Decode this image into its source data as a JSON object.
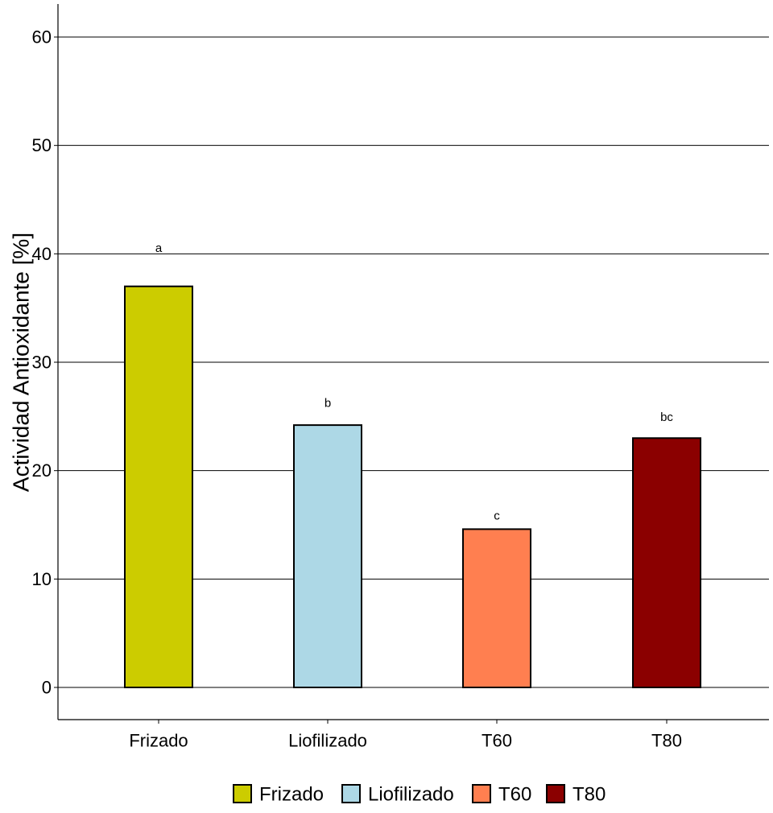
{
  "chart_data": {
    "type": "bar",
    "title": "",
    "xlabel": "",
    "ylabel": "Actividad Antioxidante [%]",
    "ylim": [
      -3,
      63
    ],
    "yticks": [
      0,
      10,
      20,
      30,
      40,
      50,
      60
    ],
    "grid": "horizontal",
    "legend_position": "bottom",
    "categories": [
      "Frizado",
      "Liofilizado",
      "T60",
      "T80"
    ],
    "values": [
      37.0,
      24.2,
      14.6,
      23.0
    ],
    "significance_labels": [
      "a",
      "b",
      "c",
      "bc"
    ],
    "significance_label_y": [
      40.5,
      26.2,
      15.8,
      24.9
    ],
    "colors": [
      "#CCCC00",
      "#ADD8E6",
      "#FF7F50",
      "#8B0000"
    ],
    "legend": [
      "Frizado",
      "Liofilizado",
      "T60",
      "T80"
    ]
  }
}
